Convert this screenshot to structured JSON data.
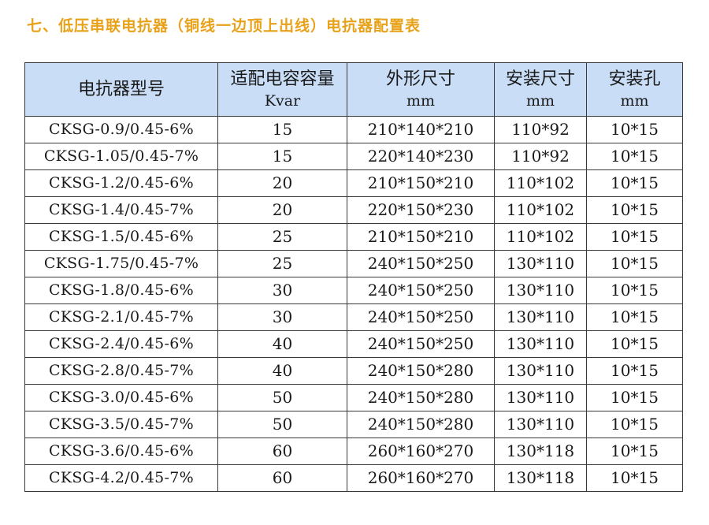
{
  "title": "七、低压串联电抗器（铜线一边顶上出线）电抗器配置表",
  "table": {
    "headers": [
      {
        "main": "电抗器型号",
        "unit": ""
      },
      {
        "main": "适配电容容量",
        "unit": "Kvar"
      },
      {
        "main": "外形尺寸",
        "unit": "mm"
      },
      {
        "main": "安装尺寸",
        "unit": "mm"
      },
      {
        "main": "安装孔",
        "unit": "mm"
      }
    ],
    "rows": [
      [
        "CKSG-0.9/0.45-6%",
        "15",
        "210*140*210",
        "110*92",
        "10*15"
      ],
      [
        "CKSG-1.05/0.45-7%",
        "15",
        "220*140*230",
        "110*92",
        "10*15"
      ],
      [
        "CKSG-1.2/0.45-6%",
        "20",
        "210*150*210",
        "110*102",
        "10*15"
      ],
      [
        "CKSG-1.4/0.45-7%",
        "20",
        "220*150*230",
        "110*102",
        "10*15"
      ],
      [
        "CKSG-1.5/0.45-6%",
        "25",
        "210*150*210",
        "110*102",
        "10*15"
      ],
      [
        "CKSG-1.75/0.45-7%",
        "25",
        "240*150*250",
        "130*110",
        "10*15"
      ],
      [
        "CKSG-1.8/0.45-6%",
        "30",
        "240*150*250",
        "130*110",
        "10*15"
      ],
      [
        "CKSG-2.1/0.45-7%",
        "30",
        "240*150*250",
        "130*110",
        "10*15"
      ],
      [
        "CKSG-2.4/0.45-6%",
        "40",
        "240*150*250",
        "130*110",
        "10*15"
      ],
      [
        "CKSG-2.8/0.45-7%",
        "40",
        "240*150*280",
        "130*110",
        "10*15"
      ],
      [
        "CKSG-3.0/0.45-6%",
        "50",
        "240*150*280",
        "130*110",
        "10*15"
      ],
      [
        "CKSG-3.5/0.45-7%",
        "50",
        "240*150*280",
        "130*110",
        "10*15"
      ],
      [
        "CKSG-3.6/0.45-6%",
        "60",
        "260*160*270",
        "130*118",
        "10*15"
      ],
      [
        "CKSG-4.2/0.45-7%",
        "60",
        "260*160*270",
        "130*118",
        "10*15"
      ]
    ]
  },
  "colors": {
    "title": "#e8a21a",
    "header_background": "#c9ddf6",
    "border": "#3a3a3a"
  }
}
